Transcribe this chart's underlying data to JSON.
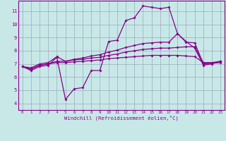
{
  "title": "",
  "xlabel": "Windchill (Refroidissement éolien,°C)",
  "bg_color": "#c8e8e8",
  "line_color": "#880088",
  "axis_bar_color": "#660066",
  "grid_color": "#99aabb",
  "xlim": [
    -0.5,
    23.5
  ],
  "ylim": [
    3.5,
    11.8
  ],
  "xticks": [
    0,
    1,
    2,
    3,
    4,
    5,
    6,
    7,
    8,
    9,
    10,
    11,
    12,
    13,
    14,
    15,
    16,
    17,
    18,
    19,
    20,
    21,
    22,
    23
  ],
  "yticks": [
    4,
    5,
    6,
    7,
    8,
    9,
    10,
    11
  ],
  "series1_x": [
    0,
    1,
    2,
    3,
    4,
    5,
    6,
    7,
    8,
    9,
    10,
    11,
    12,
    13,
    14,
    15,
    16,
    17,
    18,
    19,
    20,
    21,
    22,
    23
  ],
  "series1_y": [
    6.8,
    6.5,
    6.8,
    6.9,
    7.5,
    4.3,
    5.1,
    5.2,
    6.5,
    6.5,
    8.7,
    8.8,
    10.3,
    10.5,
    11.4,
    11.3,
    11.2,
    11.3,
    9.3,
    8.7,
    8.2,
    6.9,
    7.0,
    7.2
  ],
  "series2_x": [
    0,
    1,
    2,
    3,
    4,
    5,
    6,
    7,
    8,
    9,
    10,
    11,
    12,
    13,
    14,
    15,
    16,
    17,
    18,
    19,
    20,
    21,
    22,
    23
  ],
  "series2_y": [
    6.8,
    6.6,
    6.9,
    7.0,
    7.1,
    7.1,
    7.15,
    7.2,
    7.25,
    7.3,
    7.4,
    7.45,
    7.5,
    7.55,
    7.6,
    7.65,
    7.65,
    7.65,
    7.65,
    7.6,
    7.55,
    7.1,
    7.05,
    7.1
  ],
  "series3_x": [
    0,
    1,
    2,
    3,
    4,
    5,
    6,
    7,
    8,
    9,
    10,
    11,
    12,
    13,
    14,
    15,
    16,
    17,
    18,
    19,
    20,
    21,
    22,
    23
  ],
  "series3_y": [
    6.8,
    6.6,
    6.9,
    7.0,
    7.2,
    7.2,
    7.3,
    7.35,
    7.45,
    7.5,
    7.65,
    7.75,
    7.9,
    8.0,
    8.1,
    8.15,
    8.2,
    8.2,
    8.25,
    8.3,
    8.3,
    7.1,
    7.1,
    7.2
  ],
  "series4_x": [
    0,
    1,
    2,
    3,
    4,
    5,
    6,
    7,
    8,
    9,
    10,
    11,
    12,
    13,
    14,
    15,
    16,
    17,
    18,
    19,
    20,
    21,
    22,
    23
  ],
  "series4_y": [
    6.8,
    6.7,
    7.0,
    7.1,
    7.55,
    7.2,
    7.35,
    7.45,
    7.6,
    7.7,
    7.9,
    8.05,
    8.25,
    8.4,
    8.55,
    8.6,
    8.65,
    8.65,
    9.3,
    8.65,
    8.6,
    7.0,
    7.05,
    7.2
  ]
}
